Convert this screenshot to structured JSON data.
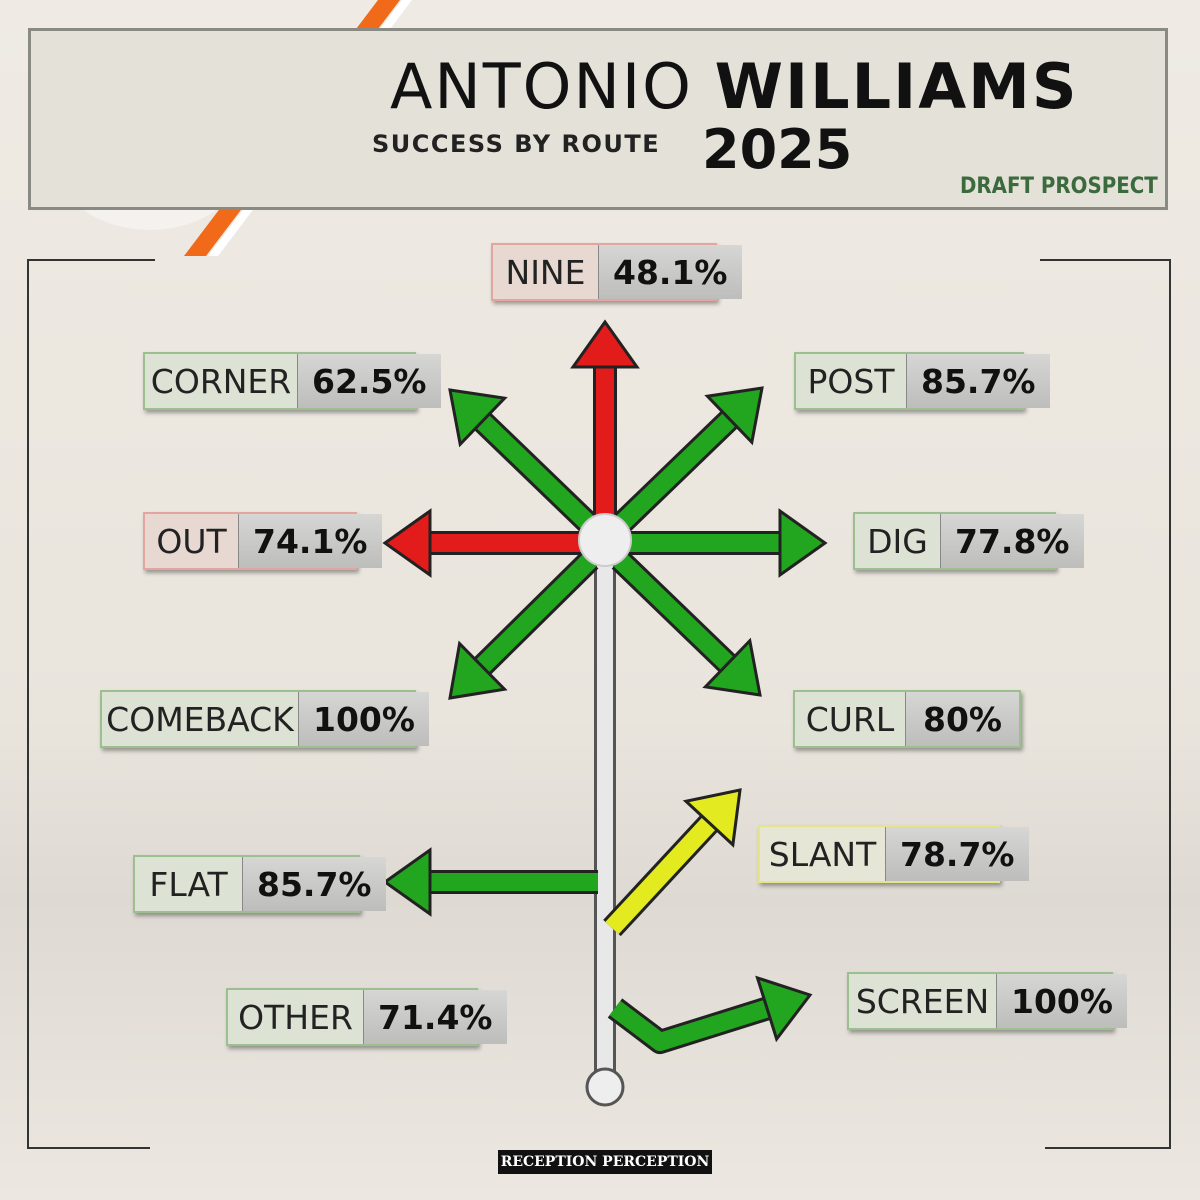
{
  "header": {
    "first_name": "ANTONIO",
    "last_name": "WILLIAMS",
    "subtitle": "SUCCESS BY ROUTE",
    "year": "2025",
    "tag": "DRAFT PROSPECT"
  },
  "routes": [
    {
      "name": "NINE",
      "value": "48.1%",
      "color": "red"
    },
    {
      "name": "CORNER",
      "value": "62.5%",
      "color": "green"
    },
    {
      "name": "POST",
      "value": "85.7%",
      "color": "green"
    },
    {
      "name": "OUT",
      "value": "74.1%",
      "color": "red"
    },
    {
      "name": "DIG",
      "value": "77.8%",
      "color": "green"
    },
    {
      "name": "COMEBACK",
      "value": "100%",
      "color": "green"
    },
    {
      "name": "CURL",
      "value": "80%",
      "color": "green"
    },
    {
      "name": "SLANT",
      "value": "78.7%",
      "color": "yellow"
    },
    {
      "name": "FLAT",
      "value": "85.7%",
      "color": "green"
    },
    {
      "name": "OTHER",
      "value": "71.4%",
      "color": "green"
    },
    {
      "name": "SCREEN",
      "value": "100%",
      "color": "green"
    }
  ],
  "footer": "RECEPTION PERCEPTION"
}
